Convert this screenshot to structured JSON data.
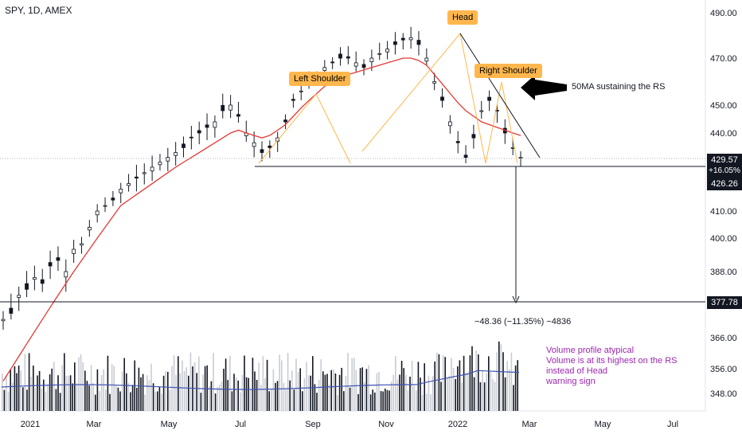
{
  "title": "SPY, 1D, AMEX",
  "colors": {
    "candle": "#131722",
    "ma": "#e53935",
    "volma": "#3f51b5",
    "label_bg": "#ffb74d",
    "vol_note": "#9c27b0"
  },
  "annotations": {
    "left_shoulder": "Left Shoulder",
    "head": "Head",
    "right_shoulder": "Right Shoulder",
    "ma_note": "50MA sustaining the RS",
    "measure": "−48.36 (−11.35%) −4836",
    "volume_note": [
      "Volume profile atypical",
      "Volume is at its highest on the RS",
      "instead of Head",
      "warning sign"
    ]
  },
  "price_tags": {
    "last": "429.57",
    "change": "+16.05%",
    "neckline": "426.26",
    "target": "377.78"
  },
  "chart_data": {
    "type": "line",
    "title": "SPY, 1D, AMEX",
    "y_ticks": [
      490,
      470,
      450,
      440,
      429.57,
      426.26,
      410,
      400,
      388,
      377.78,
      366,
      356,
      348
    ],
    "x_ticks": [
      "2021",
      "Mar",
      "May",
      "Jul",
      "Sep",
      "Nov",
      "2022",
      "Mar",
      "May",
      "Jul"
    ],
    "series": [
      {
        "name": "",
        "values": [
          372,
          374,
          380,
          382,
          386,
          384,
          390,
          392,
          388,
          396,
          398,
          404,
          410,
          412,
          414,
          418,
          420,
          422,
          424,
          426,
          428,
          430,
          432,
          434,
          438,
          440,
          442,
          444,
          448,
          450,
          446,
          440,
          436,
          432,
          434,
          438,
          444,
          452,
          456,
          460,
          462,
          466,
          468,
          470,
          470,
          468,
          466,
          470,
          472,
          474,
          476,
          478,
          479,
          476,
          470,
          460,
          452,
          444,
          436,
          430,
          438,
          448,
          452,
          448,
          440,
          434,
          430
        ]
      },
      {
        "name": "",
        "values": [
          352,
          356,
          360,
          364,
          368,
          372,
          376,
          380,
          384,
          388,
          392,
          396,
          400,
          404,
          408,
          412,
          414,
          416,
          418,
          420,
          422,
          424,
          426,
          428,
          430,
          432,
          434,
          436,
          438,
          440,
          441,
          440,
          439,
          438,
          439,
          441,
          443,
          446,
          449,
          452,
          455,
          458,
          460,
          462,
          463,
          464,
          465,
          466,
          467,
          468,
          469,
          470,
          470,
          469,
          467,
          463,
          459,
          455,
          451,
          448,
          446,
          444,
          443,
          442,
          441,
          440,
          439
        ]
      }
    ],
    "neckline": 426.26,
    "target": 377.78
  }
}
